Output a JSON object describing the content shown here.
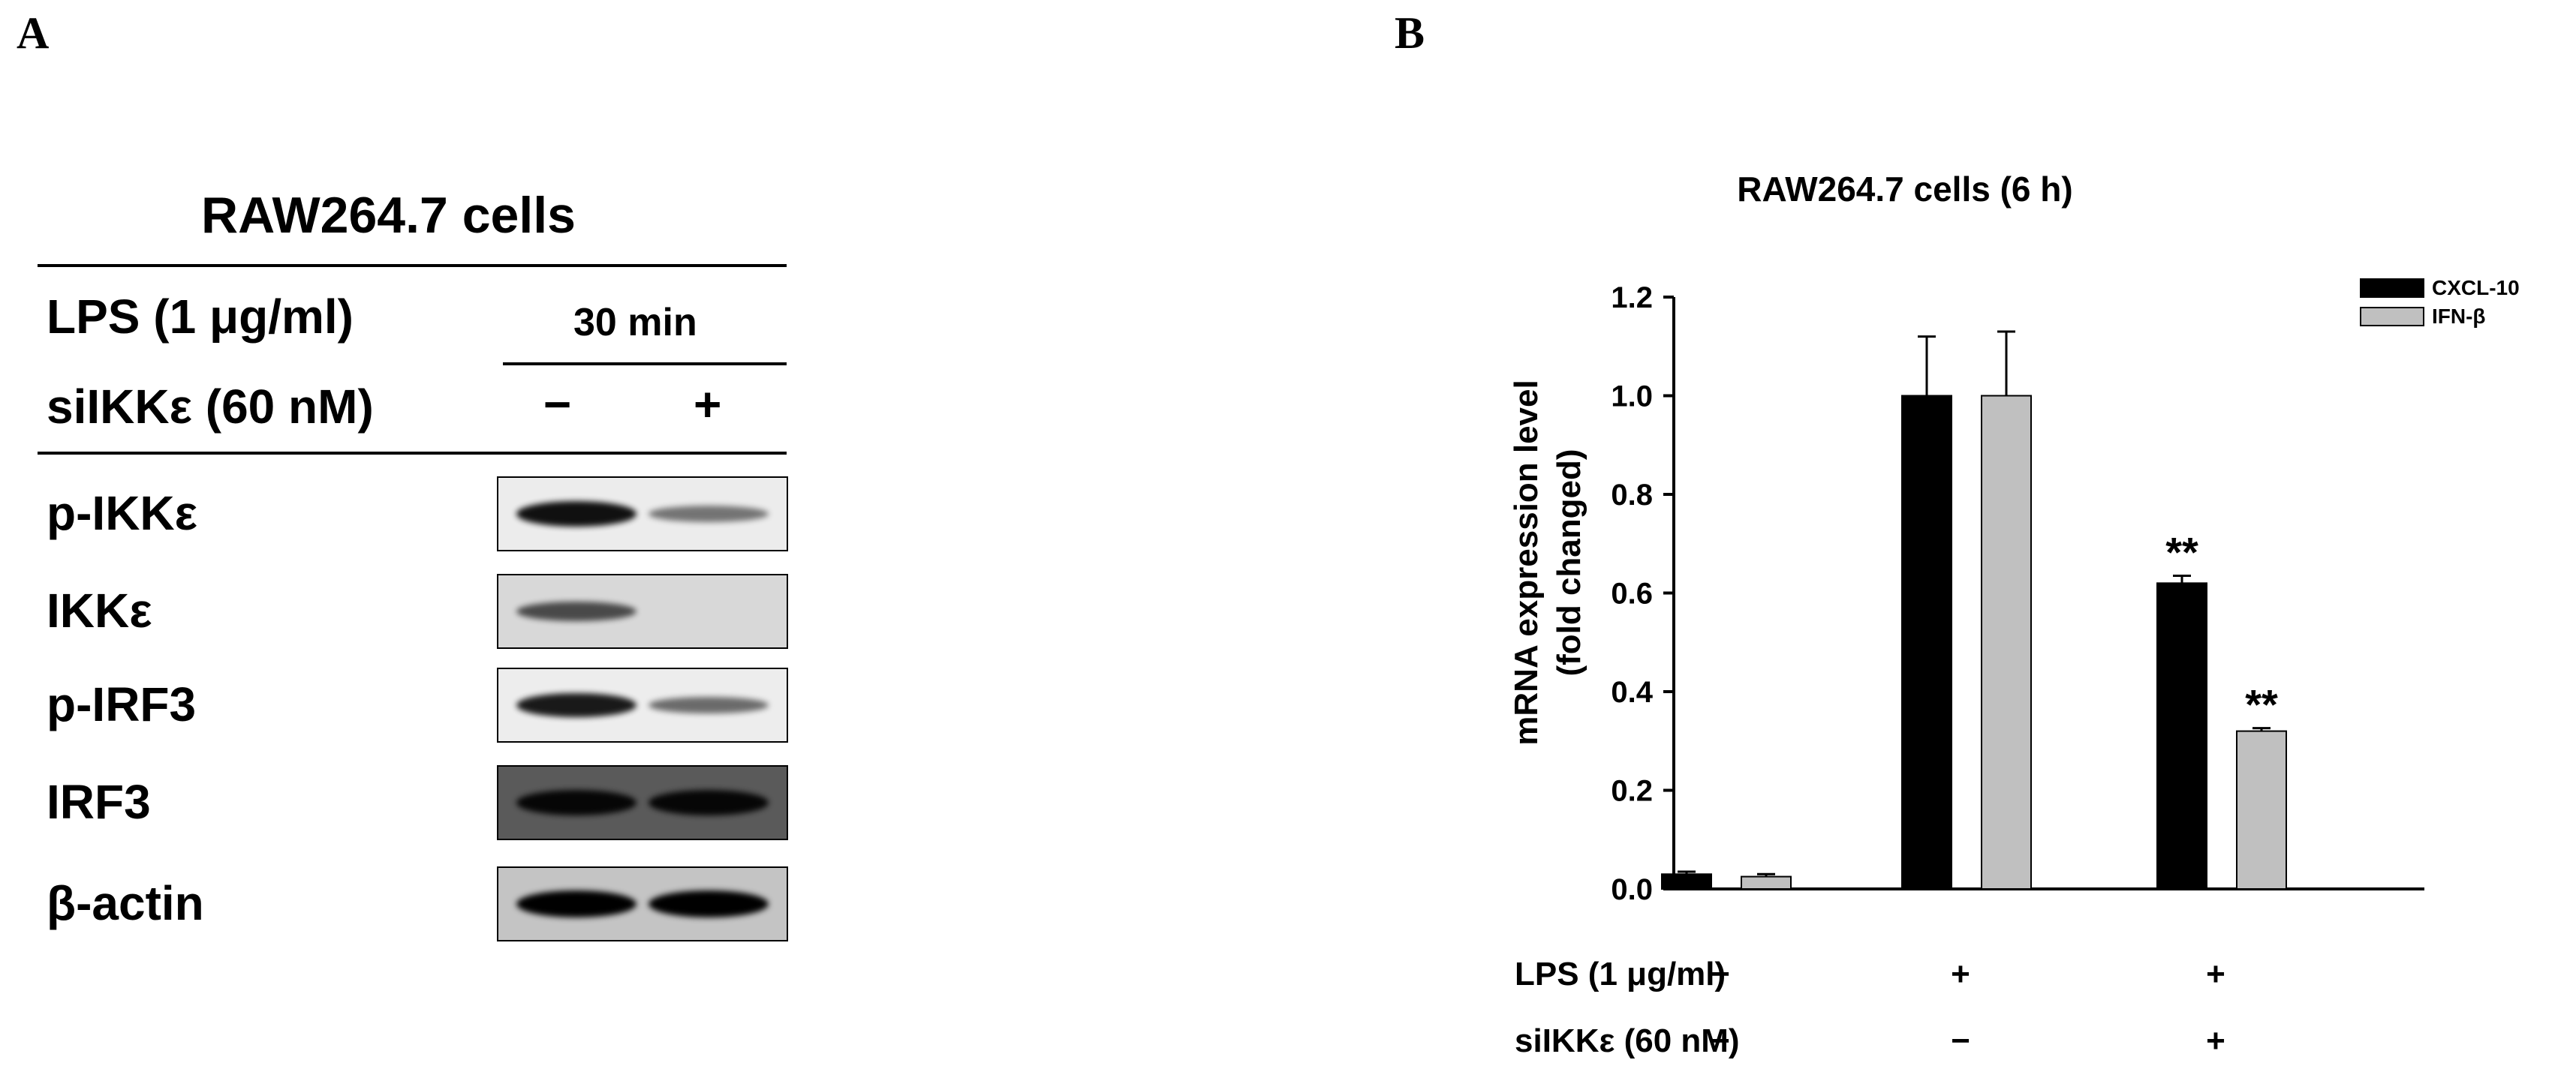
{
  "panel_a": {
    "letter": "A",
    "title": "RAW264.7  cells",
    "treatment_label": "LPS (1 μg/ml)",
    "time_label": "30 min",
    "si_label": "siIKKε (60 nM)",
    "lane_minus": "−",
    "lane_plus": "+",
    "rows": [
      {
        "label": "p-IKKε",
        "lane1_intensity": 0.9,
        "lane2_intensity": 0.35,
        "background": "#ececec"
      },
      {
        "label": "IKKε",
        "lane1_intensity": 0.55,
        "lane2_intensity": 0.0,
        "background": "#d8d8d8"
      },
      {
        "label": "p-IRF3",
        "lane1_intensity": 0.85,
        "lane2_intensity": 0.4,
        "background": "#ededed"
      },
      {
        "label": "IRF3",
        "lane1_intensity": 0.9,
        "lane2_intensity": 0.9,
        "background": "#5a5a5a"
      },
      {
        "label": "β-actin",
        "lane1_intensity": 1.0,
        "lane2_intensity": 1.0,
        "background": "#c4c4c4"
      }
    ]
  },
  "panel_b": {
    "letter": "B",
    "row_labels": [
      "LPS (1 μg/ml)",
      "siIKKε (60 nM)"
    ],
    "conditions": [
      {
        "lps": "−",
        "si": "−"
      },
      {
        "lps": "+",
        "si": "−"
      },
      {
        "lps": "+",
        "si": "+"
      }
    ]
  },
  "chart_data": {
    "type": "bar",
    "title": "RAW264.7 cells (6 h)",
    "xlabel": "",
    "ylabel": "mRNA expression level (fold changed)",
    "ylabel_lines": [
      "mRNA expression level",
      "(fold changed)"
    ],
    "ylim": [
      0.0,
      1.2
    ],
    "yticks": [
      0.0,
      0.2,
      0.4,
      0.6,
      0.8,
      1.0,
      1.2
    ],
    "ytick_labels": [
      "0.0",
      "0.2",
      "0.4",
      "0.6",
      "0.8",
      "1.0",
      "1.2"
    ],
    "categories": [
      "1",
      "2",
      "3"
    ],
    "grid": false,
    "legend_position": "top-right",
    "series": [
      {
        "name": "CXCL-10",
        "color": "#000000",
        "values": [
          0.03,
          1.0,
          0.62
        ],
        "errors": [
          0.005,
          0.12,
          0.015
        ],
        "annotations": [
          "",
          "",
          "**"
        ]
      },
      {
        "name": "IFN-β",
        "color": "#c0c0c0",
        "values": [
          0.025,
          1.0,
          0.32
        ],
        "errors": [
          0.005,
          0.13,
          0.006
        ],
        "annotations": [
          "",
          "",
          "**"
        ]
      }
    ]
  }
}
